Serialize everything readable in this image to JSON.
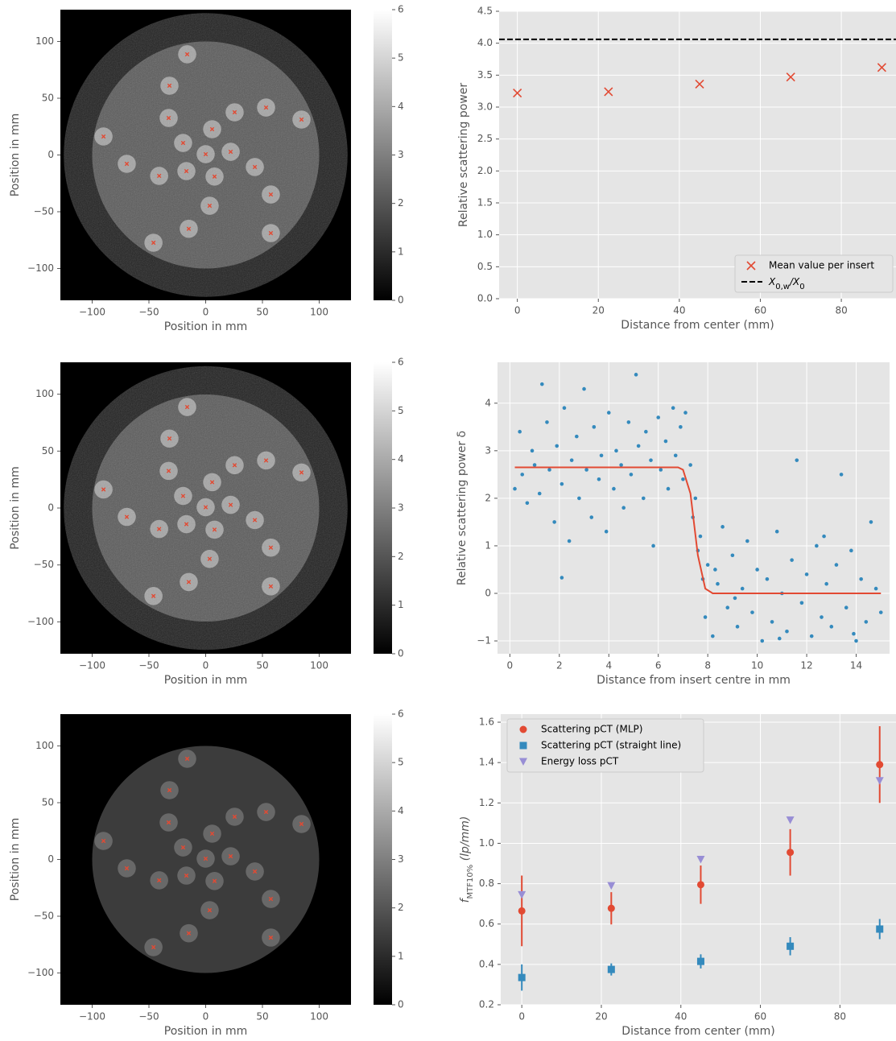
{
  "chart_data": [
    {
      "type": "image",
      "xlabel": "Position in mm",
      "ylabel": "Position in mm",
      "noise": true,
      "xlim": [
        -128,
        128
      ],
      "ylim": [
        -128,
        128
      ],
      "xticks": [
        {
          "value": -100,
          "label": "−100"
        },
        {
          "value": -50,
          "label": "−50"
        },
        0,
        50,
        100
      ],
      "yticks": [
        {
          "value": -100,
          "label": "−100"
        },
        {
          "value": -50,
          "label": "−50"
        },
        0,
        50,
        100
      ],
      "colorbar": {
        "lim": [
          0,
          6
        ],
        "ticks": [
          0,
          1,
          2,
          3,
          4,
          5,
          6
        ]
      },
      "markers": {
        "color": "#e24a33",
        "x": [
          -16.3,
          -31.9,
          25.5,
          53.2,
          84.4,
          -90,
          -32.6,
          5.7,
          -19.9,
          0,
          22,
          -69.5,
          -41,
          -17,
          7.8,
          43.3,
          57.4,
          3.5,
          -14.9,
          57.4,
          -46
        ],
        "y": [
          88.7,
          61,
          37.6,
          41.8,
          31.2,
          16.3,
          32.6,
          22.7,
          10.6,
          0.7,
          2.8,
          -7.8,
          -18.4,
          -14.2,
          -19,
          -10.6,
          -34.8,
          -44.7,
          -65,
          -68.8,
          -77.3
        ]
      }
    },
    {
      "type": "scatter",
      "xlabel": "Distance from center (mm)",
      "ylabel": "Relative scattering power",
      "grid": true,
      "xlim": [
        -4.5,
        93.5
      ],
      "ylim": [
        0,
        4.5
      ],
      "xticks": [
        0,
        20,
        40,
        60,
        80
      ],
      "yticks": [
        {
          "value": 0,
          "label": "0.0"
        },
        0.5,
        {
          "value": 1,
          "label": "1.0"
        },
        1.5,
        {
          "value": 2,
          "label": "2.0"
        },
        2.5,
        {
          "value": 3,
          "label": "3.0"
        },
        3.5,
        {
          "value": 4,
          "label": "4.0"
        },
        4.5
      ],
      "legend": "lower right",
      "series": [
        {
          "name": "Mean value per insert",
          "marker": "x",
          "color": "#e24a33",
          "x": [
            0,
            22.5,
            45,
            67.5,
            90
          ],
          "values": [
            3.22,
            3.24,
            3.36,
            3.47,
            3.62
          ]
        }
      ],
      "hlines": [
        {
          "y": 4.06,
          "color": "#000000",
          "style": "dashed",
          "name_parts": [
            "X",
            "0,w",
            "/X",
            "0"
          ]
        }
      ]
    },
    {
      "type": "image",
      "xlabel": "Position in mm",
      "ylabel": "Position in mm",
      "noise": true,
      "xlim": [
        -128,
        128
      ],
      "ylim": [
        -128,
        128
      ],
      "xticks": [
        {
          "value": -100,
          "label": "−100"
        },
        {
          "value": -50,
          "label": "−50"
        },
        0,
        50,
        100
      ],
      "yticks": [
        {
          "value": -100,
          "label": "−100"
        },
        {
          "value": -50,
          "label": "−50"
        },
        0,
        50,
        100
      ],
      "colorbar": {
        "lim": [
          0,
          6
        ],
        "ticks": [
          0,
          1,
          2,
          3,
          4,
          5,
          6
        ]
      },
      "markers": {
        "color": "#e24a33",
        "x": [
          -16.3,
          -31.9,
          25.5,
          53.2,
          84.4,
          -90,
          -32.6,
          5.7,
          -19.9,
          0,
          22,
          -69.5,
          -41,
          -17,
          7.8,
          43.3,
          57.4,
          3.5,
          -14.9,
          57.4,
          -46
        ],
        "y": [
          88.7,
          61,
          37.6,
          41.8,
          31.2,
          16.3,
          32.6,
          22.7,
          10.6,
          0.7,
          2.8,
          -7.8,
          -18.4,
          -14.2,
          -19,
          -10.6,
          -34.8,
          -44.7,
          -65,
          -68.8,
          -77.3
        ]
      }
    },
    {
      "type": "scatter",
      "xlabel": "Distance from insert centre in mm",
      "ylabel": "Relative scattering power δ",
      "grid": true,
      "xlim": [
        -0.5,
        15.35
      ],
      "ylim": [
        -1.27,
        4.86
      ],
      "xticks": [
        0,
        2,
        4,
        6,
        8,
        10,
        12,
        14
      ],
      "yticks": [
        {
          "value": -1,
          "label": "−1"
        },
        0,
        1,
        2,
        3,
        4
      ],
      "series": [
        {
          "marker": ".",
          "color": "#348abd",
          "x": [
            0.2,
            0.4,
            0.5,
            0.7,
            0.9,
            1.0,
            1.2,
            1.3,
            1.5,
            1.6,
            1.8,
            1.9,
            2.1,
            2.1,
            2.2,
            2.4,
            2.5,
            2.7,
            2.8,
            3.0,
            3.1,
            3.3,
            3.4,
            3.6,
            3.7,
            3.9,
            4.0,
            4.2,
            4.3,
            4.5,
            4.6,
            4.8,
            4.9,
            5.1,
            5.2,
            5.4,
            5.5,
            5.7,
            5.8,
            6.0,
            6.1,
            6.3,
            6.4,
            6.6,
            6.7,
            6.9,
            7.0,
            7.1,
            7.3,
            7.4,
            7.5,
            7.6,
            7.7,
            7.8,
            7.9,
            8.0,
            8.2,
            8.3,
            8.4,
            8.6,
            8.8,
            9.0,
            9.1,
            9.2,
            9.4,
            9.6,
            9.8,
            10.0,
            10.2,
            10.4,
            10.6,
            10.8,
            10.9,
            11.0,
            11.2,
            11.4,
            11.6,
            11.8,
            12.0,
            12.2,
            12.4,
            12.6,
            12.7,
            12.8,
            13.0,
            13.2,
            13.4,
            13.6,
            13.8,
            13.9,
            14.0,
            14.2,
            14.4,
            14.6,
            14.8,
            15.0
          ],
          "values": [
            2.2,
            3.4,
            2.5,
            1.9,
            3.0,
            2.7,
            2.1,
            4.4,
            3.6,
            2.6,
            1.5,
            3.1,
            2.3,
            0.33,
            3.9,
            1.1,
            2.8,
            3.3,
            2.0,
            4.3,
            2.6,
            1.6,
            3.5,
            2.4,
            2.9,
            1.3,
            3.8,
            2.2,
            3.0,
            2.7,
            1.8,
            3.6,
            2.5,
            4.6,
            3.1,
            2.0,
            3.4,
            2.8,
            1.0,
            3.7,
            2.6,
            3.2,
            2.2,
            3.9,
            2.9,
            3.5,
            2.4,
            3.8,
            2.7,
            1.6,
            2.0,
            0.9,
            1.2,
            0.3,
            -0.5,
            0.6,
            -0.9,
            0.5,
            0.2,
            1.4,
            -0.3,
            0.8,
            -0.1,
            -0.7,
            0.1,
            1.1,
            -0.4,
            0.5,
            -1.0,
            0.3,
            -0.6,
            1.3,
            -0.95,
            0.0,
            -0.8,
            0.7,
            2.8,
            -0.2,
            0.4,
            -0.9,
            1.0,
            -0.5,
            1.2,
            0.2,
            -0.7,
            0.6,
            2.5,
            -0.3,
            0.9,
            -0.85,
            -1.0,
            0.3,
            -0.6,
            1.5,
            0.1,
            -0.4
          ]
        }
      ],
      "lines": [
        {
          "color": "#e24a33",
          "x": [
            0.2,
            6.8,
            7.0,
            7.3,
            7.6,
            7.9,
            8.2,
            15
          ],
          "values": [
            2.65,
            2.65,
            2.6,
            2.1,
            0.8,
            0.1,
            0,
            0
          ]
        }
      ]
    },
    {
      "type": "image",
      "xlabel": "Position in mm",
      "ylabel": "Position in mm",
      "noise": false,
      "xlim": [
        -128,
        128
      ],
      "ylim": [
        -128,
        128
      ],
      "xticks": [
        {
          "value": -100,
          "label": "−100"
        },
        {
          "value": -50,
          "label": "−50"
        },
        0,
        50,
        100
      ],
      "yticks": [
        {
          "value": -100,
          "label": "−100"
        },
        {
          "value": -50,
          "label": "−50"
        },
        0,
        50,
        100
      ],
      "colorbar": {
        "lim": [
          0,
          6
        ],
        "ticks": [
          0,
          1,
          2,
          3,
          4,
          5,
          6
        ]
      },
      "markers": {
        "color": "#e24a33",
        "x": [
          -16.3,
          -31.9,
          25.5,
          53.2,
          84.4,
          -90,
          -32.6,
          5.7,
          -19.9,
          0,
          22,
          -69.5,
          -41,
          -17,
          7.8,
          43.3,
          57.4,
          3.5,
          -14.9,
          57.4,
          -46
        ],
        "y": [
          88.7,
          61,
          37.6,
          41.8,
          31.2,
          16.3,
          32.6,
          22.7,
          10.6,
          0.7,
          2.8,
          -7.8,
          -18.4,
          -14.2,
          -19,
          -10.6,
          -34.8,
          -44.7,
          -65,
          -68.8,
          -77.3
        ]
      }
    },
    {
      "type": "scatter",
      "xlabel": "Distance from center (mm)",
      "ylabel_parts": [
        "f",
        "MTF10%",
        " (lp/mm)"
      ],
      "grid": true,
      "xlim": [
        -5.3,
        94.1
      ],
      "ylim": [
        0.2,
        1.64
      ],
      "xticks": [
        0,
        20,
        40,
        60,
        80
      ],
      "yticks": [
        0.2,
        0.4,
        0.6,
        0.8,
        {
          "value": 1,
          "label": "1.0"
        },
        1.2,
        1.4,
        1.6
      ],
      "legend": "upper left",
      "series": [
        {
          "name": "Scattering pCT (MLP)",
          "marker": "o",
          "color": "#e24a33",
          "x": [
            0,
            22.5,
            45,
            67.5,
            90
          ],
          "values": [
            0.665,
            0.678,
            0.795,
            0.955,
            1.39
          ],
          "errors": [
            0.175,
            0.08,
            0.095,
            0.115,
            0.19
          ]
        },
        {
          "name": "Scattering pCT (straight line)",
          "marker": "s",
          "color": "#348abd",
          "x": [
            0,
            22.5,
            45,
            67.5,
            90
          ],
          "values": [
            0.335,
            0.375,
            0.415,
            0.49,
            0.575
          ],
          "errors": [
            0.065,
            0.03,
            0.035,
            0.045,
            0.05
          ]
        },
        {
          "name": "Energy loss pCT",
          "marker": "v",
          "color": "#988ed5",
          "x": [
            0,
            22.5,
            45,
            67.5,
            90
          ],
          "values": [
            0.745,
            0.79,
            0.92,
            1.115,
            1.31
          ]
        }
      ]
    }
  ]
}
